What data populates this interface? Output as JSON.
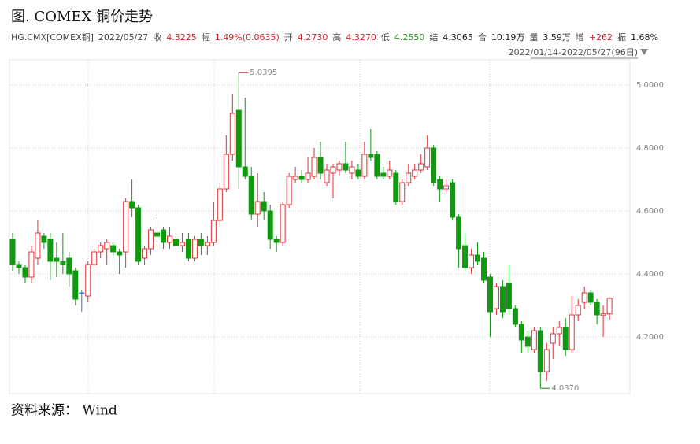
{
  "title": "图. COMEX 铜价走势",
  "source": "资料来源： Wind",
  "header": {
    "symbol": "HG.CMX[COMEX铜]",
    "date": "2022/05/27",
    "fields": [
      {
        "label": "收",
        "value": "4.3225",
        "color": "#d0282e"
      },
      {
        "label": "幅",
        "value": "1.49%(0.0635)",
        "color": "#d0282e"
      },
      {
        "label": "开",
        "value": "4.2730",
        "color": "#d0282e"
      },
      {
        "label": "高",
        "value": "4.3270",
        "color": "#d0282e"
      },
      {
        "label": "低",
        "value": "4.2550",
        "color": "#1a9a1a"
      },
      {
        "label": "结",
        "value": "4.3065",
        "color": "#222222"
      },
      {
        "label": "合",
        "value": "10.19万",
        "color": "#222222"
      },
      {
        "label": "量",
        "value": "3.59万",
        "color": "#222222"
      },
      {
        "label": "增",
        "value": "+262",
        "color": "#d0282e"
      },
      {
        "label": "振",
        "value": "1.68%",
        "color": "#222222"
      }
    ],
    "range": "2022/01/14-2022/05/27(96日)"
  },
  "chart_data": {
    "type": "candlestick",
    "up_color": "#e0323a",
    "down_color": "#119911",
    "flat_color": "#3a6fd0",
    "ylim": [
      4.02,
      5.08
    ],
    "yticks": [
      {
        "value": 4.2,
        "label": "4.2000"
      },
      {
        "value": 4.4,
        "label": "4.4000"
      },
      {
        "value": 4.6,
        "label": "4.6000"
      },
      {
        "value": 4.8,
        "label": "4.8000"
      },
      {
        "value": 5.0,
        "label": "5.0000"
      }
    ],
    "grid": true,
    "open": [
      4.51,
      4.43,
      4.42,
      4.39,
      4.45,
      4.52,
      4.51,
      4.45,
      4.44,
      4.45,
      4.41,
      4.34,
      4.33,
      4.43,
      4.47,
      4.48,
      4.49,
      4.47,
      4.47,
      4.63,
      4.61,
      4.45,
      4.48,
      4.53,
      4.54,
      4.5,
      4.51,
      4.49,
      4.51,
      4.45,
      4.51,
      4.49,
      4.5,
      4.57,
      4.67,
      4.78,
      4.92,
      4.74,
      4.71,
      4.59,
      4.63,
      4.6,
      4.51,
      4.5,
      4.62,
      4.7,
      4.71,
      4.7,
      4.71,
      4.77,
      4.69,
      4.72,
      4.73,
      4.75,
      4.72,
      4.73,
      4.71,
      4.78,
      4.78,
      4.72,
      4.71,
      4.72,
      4.63,
      4.69,
      4.71,
      4.73,
      4.74,
      4.8,
      4.7,
      4.67,
      4.69,
      4.58,
      4.49,
      4.42,
      4.46,
      4.45,
      4.39,
      4.29,
      4.36,
      4.37,
      4.29,
      4.24,
      4.2,
      4.16,
      4.22,
      4.09,
      4.18,
      4.21,
      4.23,
      4.16,
      4.27,
      4.31,
      4.34,
      4.31,
      4.268,
      4.273
    ],
    "high": [
      4.53,
      4.44,
      4.43,
      4.49,
      4.57,
      4.53,
      4.53,
      4.5,
      4.53,
      4.47,
      4.42,
      4.35,
      4.44,
      4.48,
      4.5,
      4.51,
      4.5,
      4.48,
      4.64,
      4.7,
      4.62,
      4.49,
      4.55,
      4.58,
      4.55,
      4.55,
      4.52,
      4.53,
      4.53,
      4.52,
      4.53,
      4.52,
      4.63,
      4.69,
      4.84,
      4.97,
      5.0395,
      4.96,
      4.74,
      4.72,
      4.66,
      4.62,
      4.52,
      4.63,
      4.72,
      4.74,
      4.73,
      4.77,
      4.8,
      4.82,
      4.75,
      4.75,
      4.76,
      4.82,
      4.76,
      4.75,
      4.82,
      4.86,
      4.79,
      4.74,
      4.76,
      4.73,
      4.7,
      4.75,
      4.75,
      4.78,
      4.84,
      4.81,
      4.71,
      4.7,
      4.7,
      4.59,
      4.53,
      4.48,
      4.5,
      4.47,
      4.4,
      4.37,
      4.38,
      4.43,
      4.3,
      4.25,
      4.22,
      4.23,
      4.23,
      4.18,
      4.23,
      4.25,
      4.26,
      4.33,
      4.32,
      4.36,
      4.35,
      4.32,
      4.3,
      4.327
    ],
    "low": [
      4.41,
      4.4,
      4.37,
      4.37,
      4.43,
      4.48,
      4.38,
      4.39,
      4.4,
      4.36,
      4.3,
      4.28,
      4.31,
      4.43,
      4.45,
      4.43,
      4.45,
      4.4,
      4.42,
      4.58,
      4.43,
      4.43,
      4.46,
      4.5,
      4.48,
      4.48,
      4.47,
      4.47,
      4.44,
      4.44,
      4.46,
      4.46,
      4.49,
      4.55,
      4.66,
      4.76,
      4.67,
      4.7,
      4.57,
      4.55,
      4.57,
      4.48,
      4.47,
      4.49,
      4.61,
      4.69,
      4.69,
      4.69,
      4.7,
      4.7,
      4.68,
      4.64,
      4.71,
      4.72,
      4.7,
      4.7,
      4.7,
      4.76,
      4.7,
      4.7,
      4.7,
      4.62,
      4.62,
      4.68,
      4.7,
      4.72,
      4.73,
      4.68,
      4.63,
      4.66,
      4.57,
      4.42,
      4.41,
      4.4,
      4.43,
      4.37,
      4.2,
      4.27,
      4.26,
      4.27,
      4.23,
      4.15,
      4.15,
      4.15,
      4.037,
      4.06,
      4.13,
      4.17,
      4.14,
      4.15,
      4.25,
      4.29,
      4.3,
      4.24,
      4.2,
      4.255
    ],
    "close": [
      4.43,
      4.42,
      4.39,
      4.47,
      4.53,
      4.5,
      4.44,
      4.44,
      4.43,
      4.4,
      4.32,
      4.34,
      4.43,
      4.47,
      4.49,
      4.5,
      4.47,
      4.46,
      4.63,
      4.61,
      4.44,
      4.48,
      4.54,
      4.52,
      4.5,
      4.52,
      4.49,
      4.5,
      4.45,
      4.51,
      4.49,
      4.5,
      4.57,
      4.67,
      4.78,
      4.91,
      4.74,
      4.71,
      4.59,
      4.63,
      4.6,
      4.51,
      4.5,
      4.62,
      4.71,
      4.71,
      4.7,
      4.72,
      4.77,
      4.72,
      4.73,
      4.74,
      4.75,
      4.73,
      4.74,
      4.71,
      4.78,
      4.77,
      4.71,
      4.71,
      4.73,
      4.63,
      4.69,
      4.72,
      4.73,
      4.75,
      4.8,
      4.69,
      4.67,
      4.68,
      4.58,
      4.48,
      4.42,
      4.46,
      4.44,
      4.38,
      4.28,
      4.36,
      4.28,
      4.29,
      4.24,
      4.19,
      4.17,
      4.22,
      4.09,
      4.16,
      4.21,
      4.23,
      4.16,
      4.27,
      4.3,
      4.34,
      4.31,
      4.27,
      4.273,
      4.3225
    ],
    "high_label": "5.0395",
    "low_label": "4.0370"
  }
}
